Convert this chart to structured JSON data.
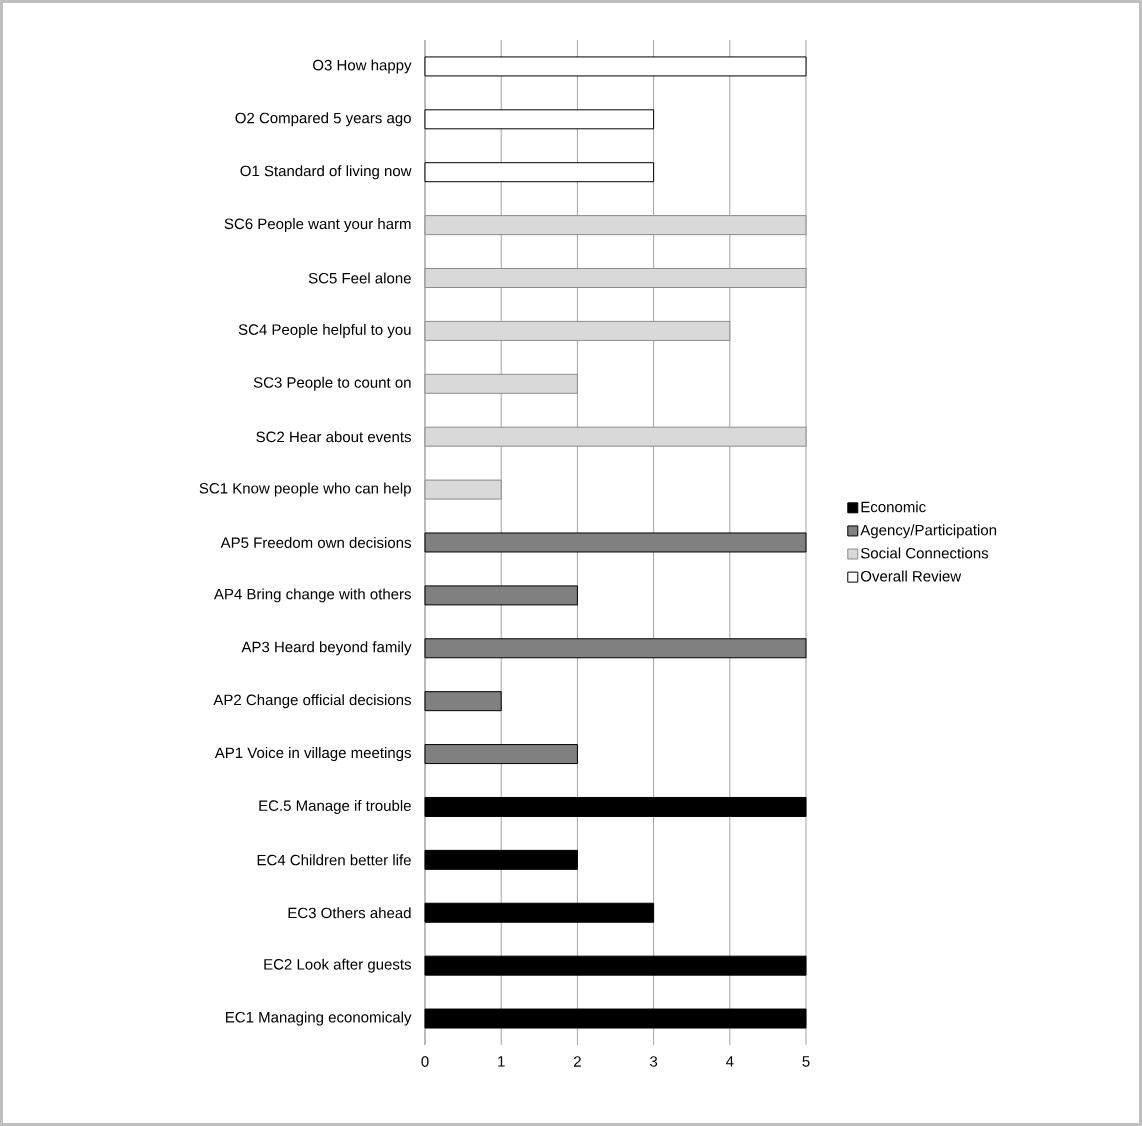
{
  "chart_data": {
    "type": "bar",
    "orientation": "horizontal",
    "categories": [
      "O3 How happy",
      "O2 Compared 5 years ago",
      "O1 Standard of living now",
      "SC6 People want your harm",
      "SC5 Feel alone",
      "SC4 People helpful to you",
      "SC3 People to count on",
      "SC2 Hear about events",
      "SC1 Know people who can help",
      "AP5 Freedom own decisions",
      "AP4 Bring change with others",
      "AP3 Heard beyond family",
      "AP2 Change official decisions",
      "AP1 Voice in village meetings",
      "EC.5 Manage if trouble",
      "EC4 Children  better life",
      "EC3 Others  ahead",
      "EC2 Look after guests",
      "EC1 Managing economicaly"
    ],
    "series": [
      {
        "name": "Economic",
        "color": "#000000",
        "values": [
          null,
          null,
          null,
          null,
          null,
          null,
          null,
          null,
          null,
          null,
          null,
          null,
          null,
          null,
          5,
          2,
          3,
          5,
          5
        ]
      },
      {
        "name": "Agency/Participation",
        "color": "#808080",
        "values": [
          null,
          null,
          null,
          null,
          null,
          null,
          null,
          null,
          null,
          5,
          2,
          5,
          1,
          2,
          null,
          null,
          null,
          null,
          null
        ]
      },
      {
        "name": "Social Connections",
        "color": "#d9d9d9",
        "values": [
          null,
          null,
          null,
          5,
          5,
          4,
          2,
          5,
          1,
          null,
          null,
          null,
          null,
          null,
          null,
          null,
          null,
          null,
          null
        ]
      },
      {
        "name": "Overall Review",
        "color": "#ffffff",
        "values": [
          5,
          3,
          3,
          null,
          null,
          null,
          null,
          null,
          null,
          null,
          null,
          null,
          null,
          null,
          null,
          null,
          null,
          null,
          null
        ]
      }
    ],
    "xlim": [
      0,
      5
    ],
    "xticks": [
      0,
      1,
      2,
      3,
      4,
      5
    ],
    "grid": "x",
    "legend": "right"
  }
}
